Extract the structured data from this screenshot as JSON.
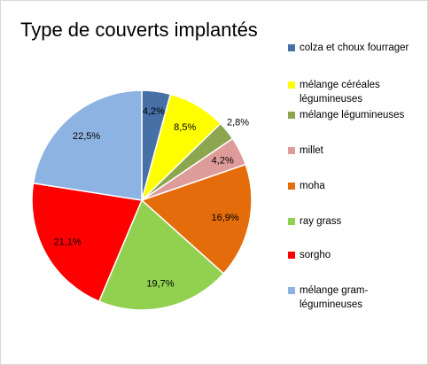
{
  "chart_data": {
    "type": "pie",
    "title": "Type de couverts implantés",
    "legend_position": "right",
    "start_angle_deg": 0,
    "direction": "clockwise",
    "slices": [
      {
        "name": "colza et choux fourrager",
        "value": 4.2,
        "label": "4,2%",
        "color": "#4670a6"
      },
      {
        "name": "mélange céréales légumineuses",
        "value": 8.5,
        "label": "8,5%",
        "color": "#ffff00"
      },
      {
        "name": "mélange légumineuses",
        "value": 2.8,
        "label": "2,8%",
        "color": "#8ca54f"
      },
      {
        "name": "millet",
        "value": 4.2,
        "label": "4,2%",
        "color": "#dd9c9a"
      },
      {
        "name": "moha",
        "value": 16.9,
        "label": "16,9%",
        "color": "#e46c0a"
      },
      {
        "name": "ray grass",
        "value": 19.7,
        "label": "19,7%",
        "color": "#92d050"
      },
      {
        "name": "sorgho",
        "value": 21.1,
        "label": "21,1%",
        "color": "#ff0000"
      },
      {
        "name": "mélange gram-légumineuses",
        "value": 22.5,
        "label": "22,5%",
        "color": "#8db3e2"
      }
    ]
  },
  "legend": {
    "lines": [
      [
        "colza et choux fourrager"
      ],
      [
        "mélange céréales",
        "légumineuses"
      ],
      [
        "mélange légumineuses"
      ],
      [
        "millet"
      ],
      [
        "moha"
      ],
      [
        "ray grass"
      ],
      [
        "sorgho"
      ],
      [
        "mélange gram-",
        "légumineuses"
      ]
    ]
  }
}
